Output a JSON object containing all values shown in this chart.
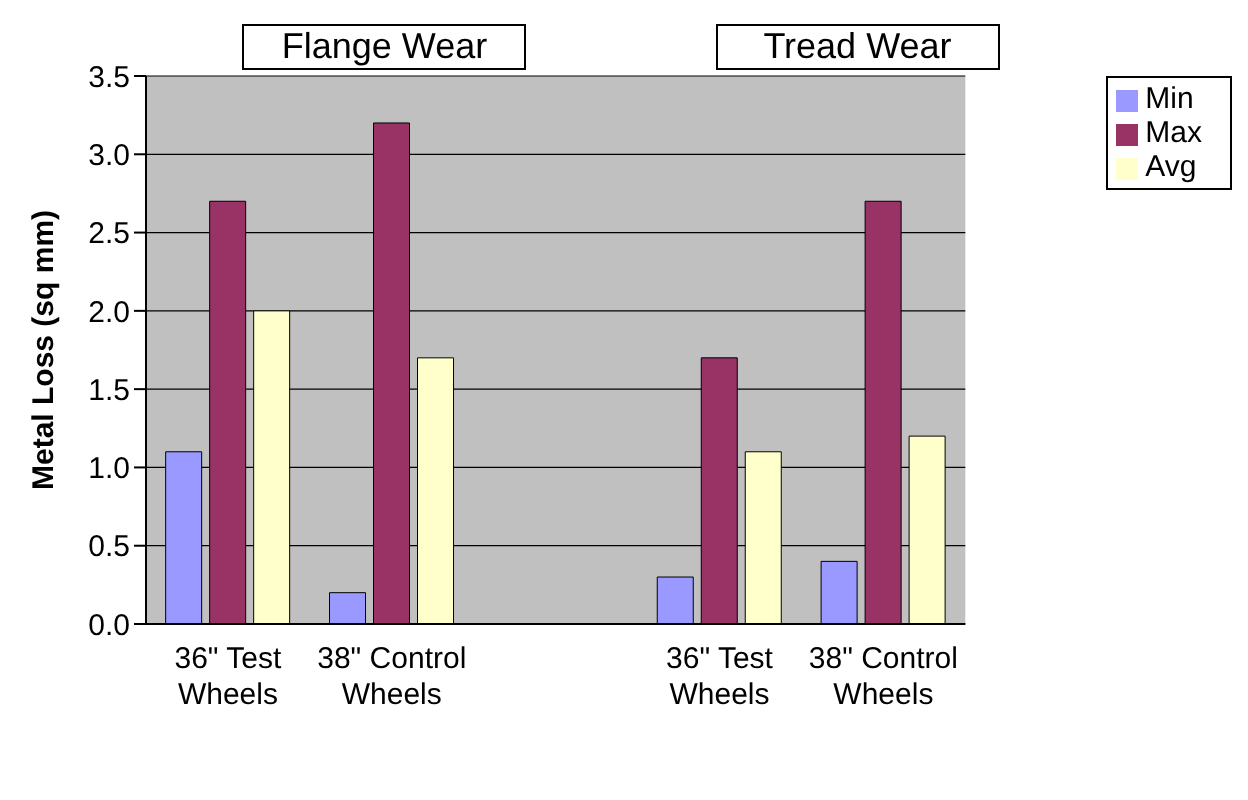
{
  "chart_data": {
    "type": "bar",
    "ylabel": "Metal Loss (sq mm)",
    "annotations": [
      "Flange Wear",
      "Tread Wear"
    ],
    "categories": [
      "36\" Test Wheels",
      "38\" Control Wheels",
      null,
      "36\" Test Wheels",
      "38\" Control Wheels"
    ],
    "series": [
      {
        "name": "Min",
        "color": "#9999ff",
        "values": [
          1.1,
          0.2,
          null,
          0.3,
          0.4
        ]
      },
      {
        "name": "Max",
        "color": "#993366",
        "values": [
          2.7,
          3.2,
          null,
          1.7,
          2.7
        ]
      },
      {
        "name": "Avg",
        "color": "#ffffcc",
        "values": [
          2.0,
          1.7,
          null,
          1.1,
          1.2
        ]
      }
    ],
    "ylim": [
      0,
      3.5
    ],
    "yticks": [
      {
        "value": 0,
        "label": "0.0"
      },
      {
        "value": 0.5,
        "label": "0.5"
      },
      {
        "value": 1,
        "label": "1.0"
      },
      {
        "value": 1.5,
        "label": "1.5"
      },
      {
        "value": 2,
        "label": "2.0"
      },
      {
        "value": 2.5,
        "label": "2.5"
      },
      {
        "value": 3,
        "label": "3.0"
      },
      {
        "value": 3.5,
        "label": "3.5"
      }
    ],
    "grid": "y",
    "legend": "right"
  }
}
